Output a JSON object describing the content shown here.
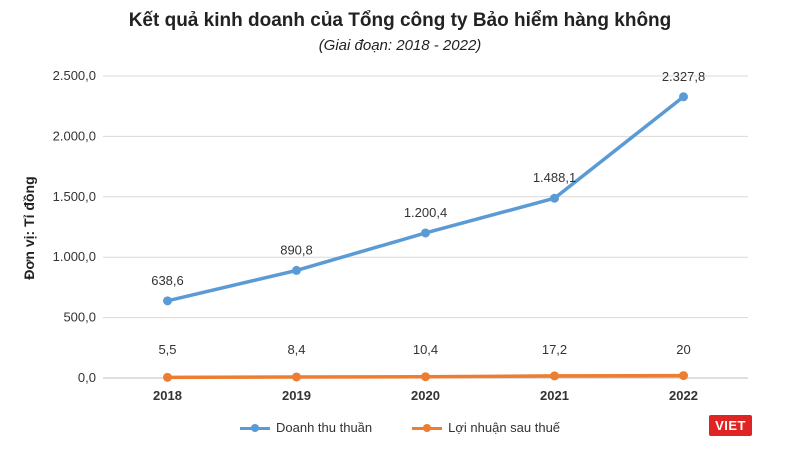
{
  "chart_data": {
    "type": "line",
    "title": "Kết quả kinh doanh của Tổng công ty Bảo hiểm hàng không",
    "subtitle": "(Giai đoạn: 2018 - 2022)",
    "ylabel": "Đơn vị: Tỉ đồng",
    "xlabel": "",
    "categories": [
      "2018",
      "2019",
      "2020",
      "2021",
      "2022"
    ],
    "ylim": [
      0,
      2500
    ],
    "yticks": [
      "0,0",
      "500,0",
      "1.000,0",
      "1.500,0",
      "2.000,0",
      "2.500,0"
    ],
    "grid": true,
    "legend": "bottom",
    "series": [
      {
        "name": "Doanh thu thuần",
        "color": "#5b9bd5",
        "values": [
          638.6,
          890.8,
          1200.4,
          1488.1,
          2327.8
        ],
        "labels": [
          "638,6",
          "890,8",
          "1.200,4",
          "1.488,1",
          "2.327,8"
        ]
      },
      {
        "name": "Lợi nhuận sau thuế",
        "color": "#ed7d31",
        "values": [
          5.5,
          8.4,
          10.4,
          17.2,
          20
        ],
        "labels": [
          "5,5",
          "8,4",
          "10,4",
          "17,2",
          "20"
        ]
      }
    ]
  },
  "logo_text": "VIET"
}
